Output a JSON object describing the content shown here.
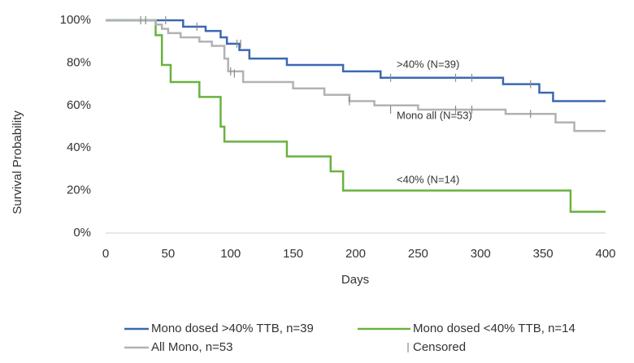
{
  "chart_data": {
    "type": "step",
    "x_label": "Days",
    "y_label": "Survival Probability",
    "xlim": [
      0,
      400
    ],
    "xticks": [
      0,
      50,
      100,
      150,
      200,
      250,
      300,
      350,
      400
    ],
    "ylim": [
      0,
      100
    ],
    "yticks": [
      {
        "value": 0,
        "label": "0%"
      },
      {
        "value": 20,
        "label": "20%"
      },
      {
        "value": 40,
        "label": "40%"
      },
      {
        "value": 60,
        "label": "60%"
      },
      {
        "value": 80,
        "label": "80%"
      },
      {
        "value": 100,
        "label": "100%"
      }
    ],
    "grid": false,
    "annotations": [
      ">40% (N=39)",
      "Mono all  (N=53)",
      "<40% (N=14)"
    ],
    "series": [
      {
        "name": "Mono dosed >40% TTB, n=39",
        "color": "#3b68b2",
        "x": [
          0,
          62,
          80,
          92,
          97,
          107,
          115,
          145,
          190,
          220,
          318,
          347,
          358,
          400
        ],
        "values": [
          100,
          97,
          95,
          92,
          89,
          86,
          82,
          79,
          76,
          73,
          70,
          66,
          62,
          62
        ]
      },
      {
        "name": "Mono dosed <40% TTB, n=14",
        "color": "#6ab23e",
        "x": [
          0,
          40,
          45,
          52,
          75,
          92,
          95,
          145,
          180,
          190,
          372,
          400
        ],
        "values": [
          100,
          93,
          79,
          71,
          64,
          50,
          43,
          36,
          29,
          20,
          10,
          10
        ]
      },
      {
        "name": "All Mono, n=53",
        "color": "#b2b2b2",
        "x": [
          0,
          40,
          45,
          50,
          60,
          75,
          85,
          95,
          98,
          110,
          150,
          175,
          195,
          215,
          250,
          320,
          360,
          375,
          400
        ],
        "values": [
          100,
          98,
          96,
          94,
          92,
          90,
          88,
          82,
          76,
          71,
          68,
          65,
          62,
          60,
          58,
          56,
          52,
          48,
          48
        ]
      },
      {
        "name": "Censored",
        "color": "#8a8a8a",
        "marker": "|",
        "x": [
          28,
          32,
          48,
          73,
          105,
          108,
          228,
          280,
          293,
          340,
          100,
          103,
          195,
          228,
          280,
          293,
          340
        ],
        "values": [
          100,
          100,
          100,
          97,
          89,
          89,
          73,
          73,
          73,
          70,
          76,
          75,
          62,
          58,
          58,
          58,
          56
        ]
      }
    ]
  }
}
